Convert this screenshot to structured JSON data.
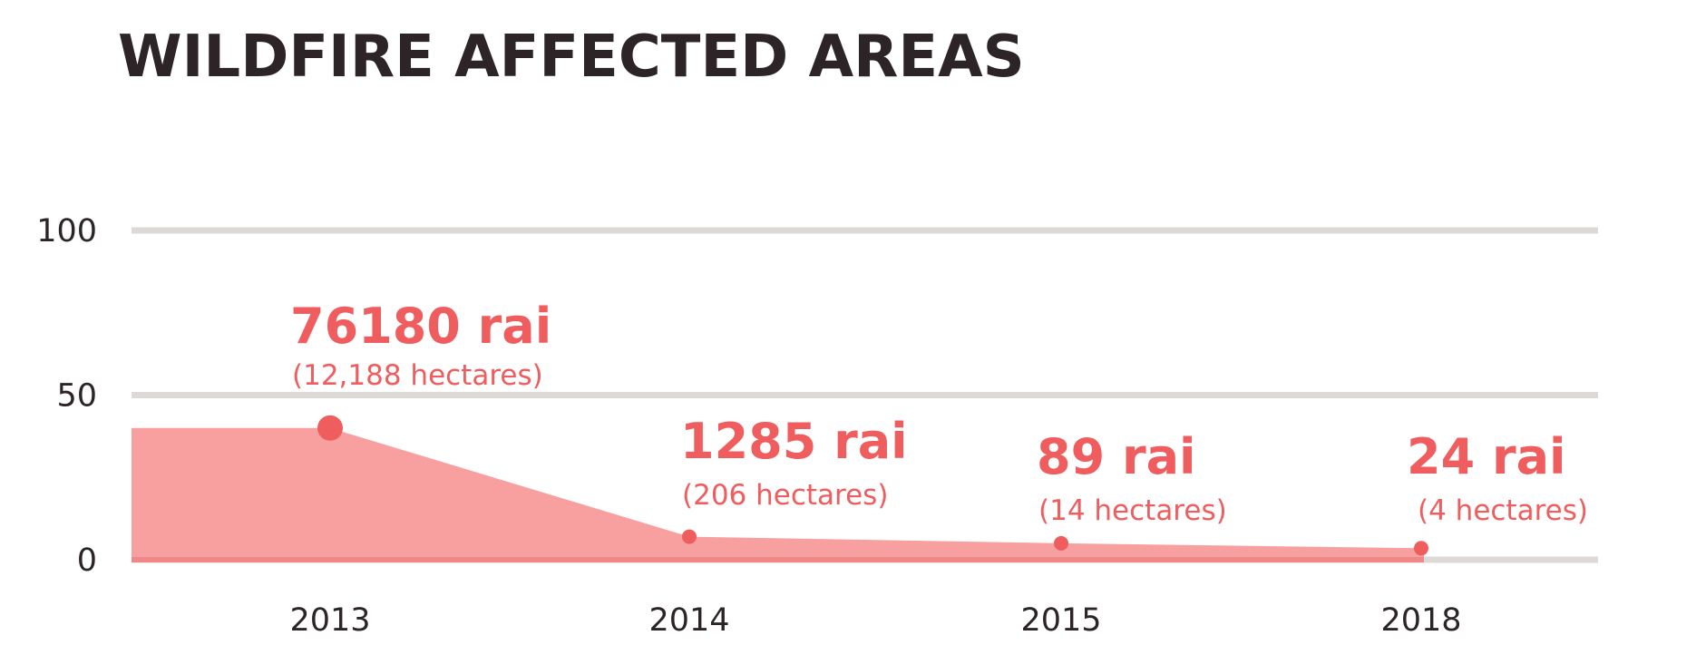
{
  "chart_data": {
    "type": "area",
    "title": "WILDFIRE AFFECTED AREAS",
    "xlabel": "",
    "ylabel": "",
    "ylim": [
      0,
      100
    ],
    "yticks": [
      "0",
      "50",
      "100"
    ],
    "grid": true,
    "x": [
      "2013",
      "2014",
      "2015",
      "2018"
    ],
    "series": [
      {
        "values": [
          40,
          7,
          5,
          3.5
        ],
        "labels": [
          {
            "main": "76180 rai",
            "sub": "(12,188 hectares)"
          },
          {
            "main": "1285 rai",
            "sub": "(206 hectares)"
          },
          {
            "main": "89 rai",
            "sub": "(14 hectares)"
          },
          {
            "main": "24 rai",
            "sub": "(4 hectares)"
          }
        ]
      }
    ],
    "colors": {
      "area": "#f7a09f",
      "baseline": "#ef8887",
      "marker": "#f05d5e",
      "label": "#f05d5e",
      "grid": "#dcd9d7",
      "text": "#2d2427"
    }
  }
}
